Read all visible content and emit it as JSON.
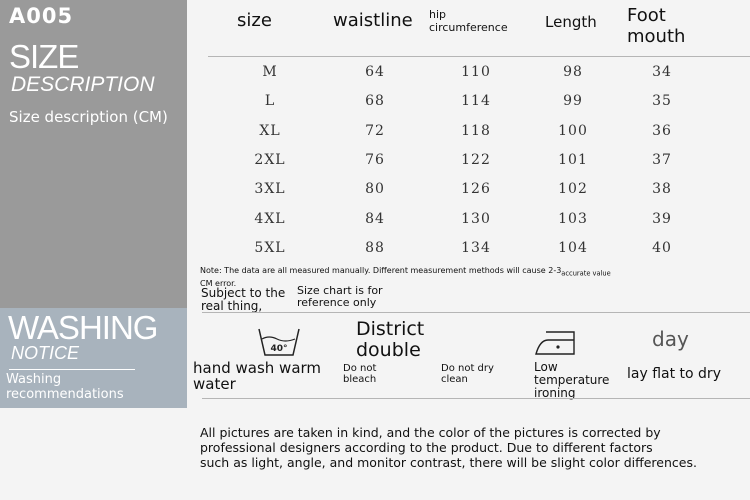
{
  "left_panel": {
    "code": "A005",
    "size_title": "SIZE",
    "size_subtitle": "DESCRIPTION",
    "size_caption": "Size description (CM)",
    "washing_title": "WASHING",
    "washing_subtitle": "NOTICE",
    "washing_caption_1": "Washing",
    "washing_caption_2": "recommendations"
  },
  "table": {
    "headers": [
      "size",
      "waistline",
      "hip circumference",
      "Length",
      "Foot mouth"
    ],
    "header_lines": {
      "hip_1": "hip",
      "hip_2": "circumference",
      "foot_1": "Foot",
      "foot_2": "mouth"
    },
    "rows": [
      [
        "M",
        "64",
        "110",
        "98",
        "34"
      ],
      [
        "L",
        "68",
        "114",
        "99",
        "35"
      ],
      [
        "XL",
        "72",
        "118",
        "100",
        "36"
      ],
      [
        "2XL",
        "76",
        "122",
        "101",
        "37"
      ],
      [
        "3XL",
        "80",
        "126",
        "102",
        "38"
      ],
      [
        "4XL",
        "84",
        "130",
        "103",
        "39"
      ],
      [
        "5XL",
        "88",
        "134",
        "104",
        "40"
      ]
    ]
  },
  "notes": {
    "note": "Note: The data are all measured manually. Different measurement methods will cause 2-3",
    "note_suffix": "accurate value",
    "note_2": "CM error.",
    "subject_1": "Subject to the",
    "subject_2": "real thing,",
    "ref_1": "Size chart is for",
    "ref_2": "reference only"
  },
  "washing": {
    "tub_temp": "40°",
    "hand_wash_1": "hand wash warm",
    "hand_wash_2": "water",
    "district_1": "District",
    "district_2": "double",
    "no_bleach_1": "Do not",
    "no_bleach_2": "bleach",
    "no_dry_clean_1": "Do not dry",
    "no_dry_clean_2": "clean",
    "iron_1": "Low",
    "iron_2": "temperature",
    "iron_3": "ironing",
    "day": "day",
    "lay_flat": "lay flat to dry"
  },
  "disclaimer": [
    "All pictures are taken in kind, and the color of the pictures is corrected by",
    "professional designers according to the product. Due to different factors",
    "such as light, angle, and monitor contrast, there will be slight color differences."
  ],
  "colors": {
    "size_panel": "#9a9a9a",
    "washing_panel": "#a8b3bd",
    "background": "#f4f4f4"
  }
}
